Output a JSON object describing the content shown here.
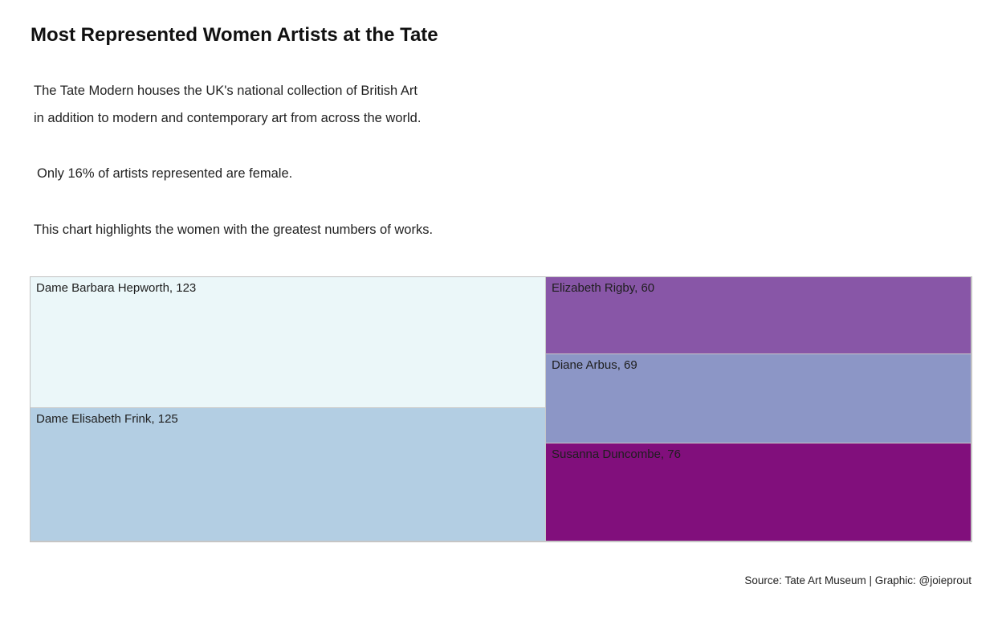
{
  "header": {
    "title": "Most Represented Women Artists at the Tate",
    "description": [
      "The Tate Modern houses the UK's national collection of British Art",
      "in addition to modern and contemporary art from across the world.",
      "Only 16% of artists represented are female.",
      "This chart highlights the women with the greatest numbers of works."
    ]
  },
  "chart_data": {
    "type": "treemap",
    "title": "Most Represented Women Artists at the Tate",
    "items": [
      {
        "name": "Dame Barbara Hepworth",
        "value": 123,
        "label": "Dame Barbara Hepworth, 123",
        "color": "#ebf7f9"
      },
      {
        "name": "Dame Elisabeth Frink",
        "value": 125,
        "label": "Dame Elisabeth Frink, 125",
        "color": "#b3cee3"
      },
      {
        "name": "Elizabeth Rigby",
        "value": 60,
        "label": "Elizabeth Rigby, 60",
        "color": "#8856a7"
      },
      {
        "name": "Diane Arbus",
        "value": 69,
        "label": "Diane Arbus, 69",
        "color": "#8c96c6"
      },
      {
        "name": "Susanna Duncombe",
        "value": 76,
        "label": "Susanna Duncombe, 76",
        "color": "#810f7c"
      }
    ]
  },
  "footer": {
    "source": "Source: Tate Art Museum | Graphic: @joieprout"
  }
}
